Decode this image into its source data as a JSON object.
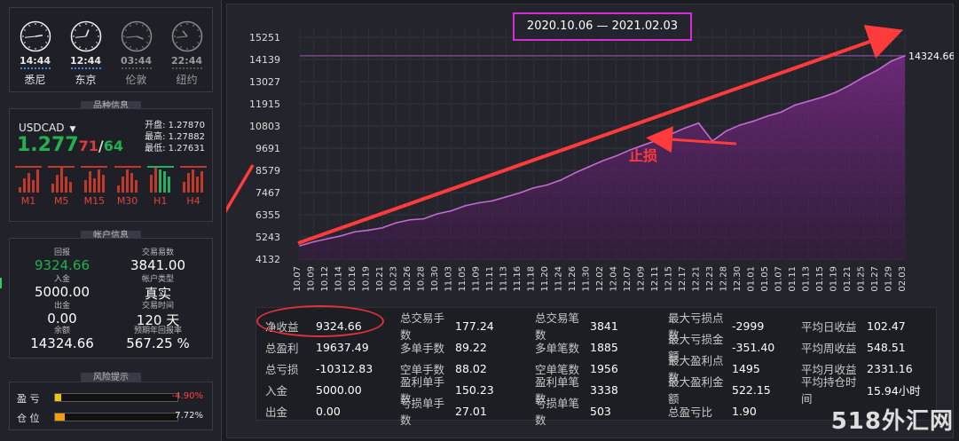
{
  "clocks": [
    {
      "time": "14:44",
      "city": "悉尼",
      "active": true,
      "h": 2.7,
      "m": 44
    },
    {
      "time": "12:44",
      "city": "东京",
      "active": true,
      "h": 0.7,
      "m": 44
    },
    {
      "time": "03:44",
      "city": "伦敦",
      "active": false,
      "h": 3.7,
      "m": 44
    },
    {
      "time": "22:44",
      "city": "纽约",
      "active": false,
      "h": 10.7,
      "m": 44
    }
  ],
  "quote": {
    "section_title": "品种信息",
    "symbol": "USDCAD",
    "dropdown_icon": "triangle-down-icon",
    "price_main": "1.277",
    "price_red": "71",
    "sep": "/",
    "price_green": "64",
    "open_label": "开盘:",
    "open": "1.27870",
    "high_label": "最高:",
    "high": "1.27882",
    "low_label": "最低:",
    "low": "1.27631",
    "timeframes": [
      "M1",
      "M5",
      "M15",
      "M30",
      "H1",
      "H4"
    ]
  },
  "account": {
    "section_title": "帐户信息",
    "return_label": "回报",
    "return_value": "9324.66",
    "equity_label": "交易易数",
    "equity_value": "3841.00",
    "deposit_label": "入金",
    "deposit_value": "5000.00",
    "acct_type_label": "帐户类型",
    "acct_type_value": "真实",
    "withdraw_label": "出金",
    "withdraw_value": "0.00",
    "days_label": "交易时间",
    "days_value": "120 天",
    "balance_label": "余额",
    "balance_value": "14324.66",
    "annual_label": "预期年回报率",
    "annual_value": "567.25 %"
  },
  "risk": {
    "section_title": "风险提示",
    "pl_label": "盈  亏",
    "pl_value": "-4.90%",
    "pl_fill": 0.05,
    "pos_label": "仓  位",
    "pos_value": "7.72%",
    "pos_fill": 0.077
  },
  "chart_header": {
    "date_range": "2020.10.06 — 2021.02.03"
  },
  "chart_data": {
    "type": "area",
    "yticks": [
      "15251",
      "14139",
      "13027",
      "11915",
      "10803",
      "9691",
      "8579",
      "7467",
      "6355",
      "5243",
      "4132"
    ],
    "ylim": [
      4132,
      15251
    ],
    "xticks": [
      "10.07",
      "10.09",
      "10.12",
      "10.14",
      "10.16",
      "10.19",
      "10.21",
      "10.23",
      "10.26",
      "10.28",
      "10.30",
      "11.03",
      "11.05",
      "11.09",
      "11.11",
      "11.13",
      "11.16",
      "11.18",
      "11.20",
      "11.24",
      "11.26",
      "11.30",
      "12.02",
      "12.04",
      "12.07",
      "12.09",
      "12.11",
      "12.15",
      "12.17",
      "12.21",
      "12.23",
      "12.28",
      "12.30",
      "01.01",
      "01.05",
      "01.07",
      "01.11",
      "01.13",
      "01.15",
      "01.19",
      "01.21",
      "01.25",
      "01.27",
      "01.29",
      "02.03"
    ],
    "end_label": "14324.66",
    "ref_line": 14324.66,
    "values": [
      4800,
      5000,
      5150,
      5300,
      5500,
      5580,
      5700,
      5950,
      6100,
      6150,
      6400,
      6550,
      6800,
      6950,
      7050,
      7250,
      7450,
      7700,
      7850,
      8100,
      8450,
      8750,
      9050,
      9300,
      9600,
      9850,
      10100,
      10400,
      10700,
      10950,
      10050,
      10550,
      10850,
      11050,
      11300,
      11500,
      11850,
      12050,
      12250,
      12500,
      12850,
      13250,
      13600,
      14050,
      14324.66
    ],
    "annotation": "止损"
  },
  "stats": {
    "col1": [
      [
        "净收益",
        "9324.66"
      ],
      [
        "总盈利",
        "19637.49"
      ],
      [
        "总亏损",
        "-10312.83"
      ],
      [
        "入金",
        "5000.00"
      ],
      [
        "出金",
        "0.00"
      ]
    ],
    "col2": [
      [
        "总交易手数",
        "177.24"
      ],
      [
        "多单手数",
        "89.22"
      ],
      [
        "空单手数",
        "88.02"
      ],
      [
        "盈利单手数",
        "150.23"
      ],
      [
        "亏损单手数",
        "27.01"
      ]
    ],
    "col3": [
      [
        "总交易笔数",
        "3841"
      ],
      [
        "多单笔数",
        "1885"
      ],
      [
        "空单笔数",
        "1956"
      ],
      [
        "盈利单笔数",
        "3338"
      ],
      [
        "亏损单笔数",
        "503"
      ]
    ],
    "col4": [
      [
        "最大亏损点数",
        "-2999"
      ],
      [
        "最大亏损金额",
        "-351.40"
      ],
      [
        "最大盈利点数",
        "1495"
      ],
      [
        "最大盈利金额",
        "522.15"
      ],
      [
        "总盈亏比",
        "1.90"
      ]
    ],
    "col5": [
      [
        "平均日收益",
        "102.47"
      ],
      [
        "平均周收益",
        "548.51"
      ],
      [
        "平均月收益",
        "2331.16"
      ],
      [
        "平均持仓时间",
        "15.94小时"
      ]
    ]
  },
  "watermark": "518外汇网"
}
